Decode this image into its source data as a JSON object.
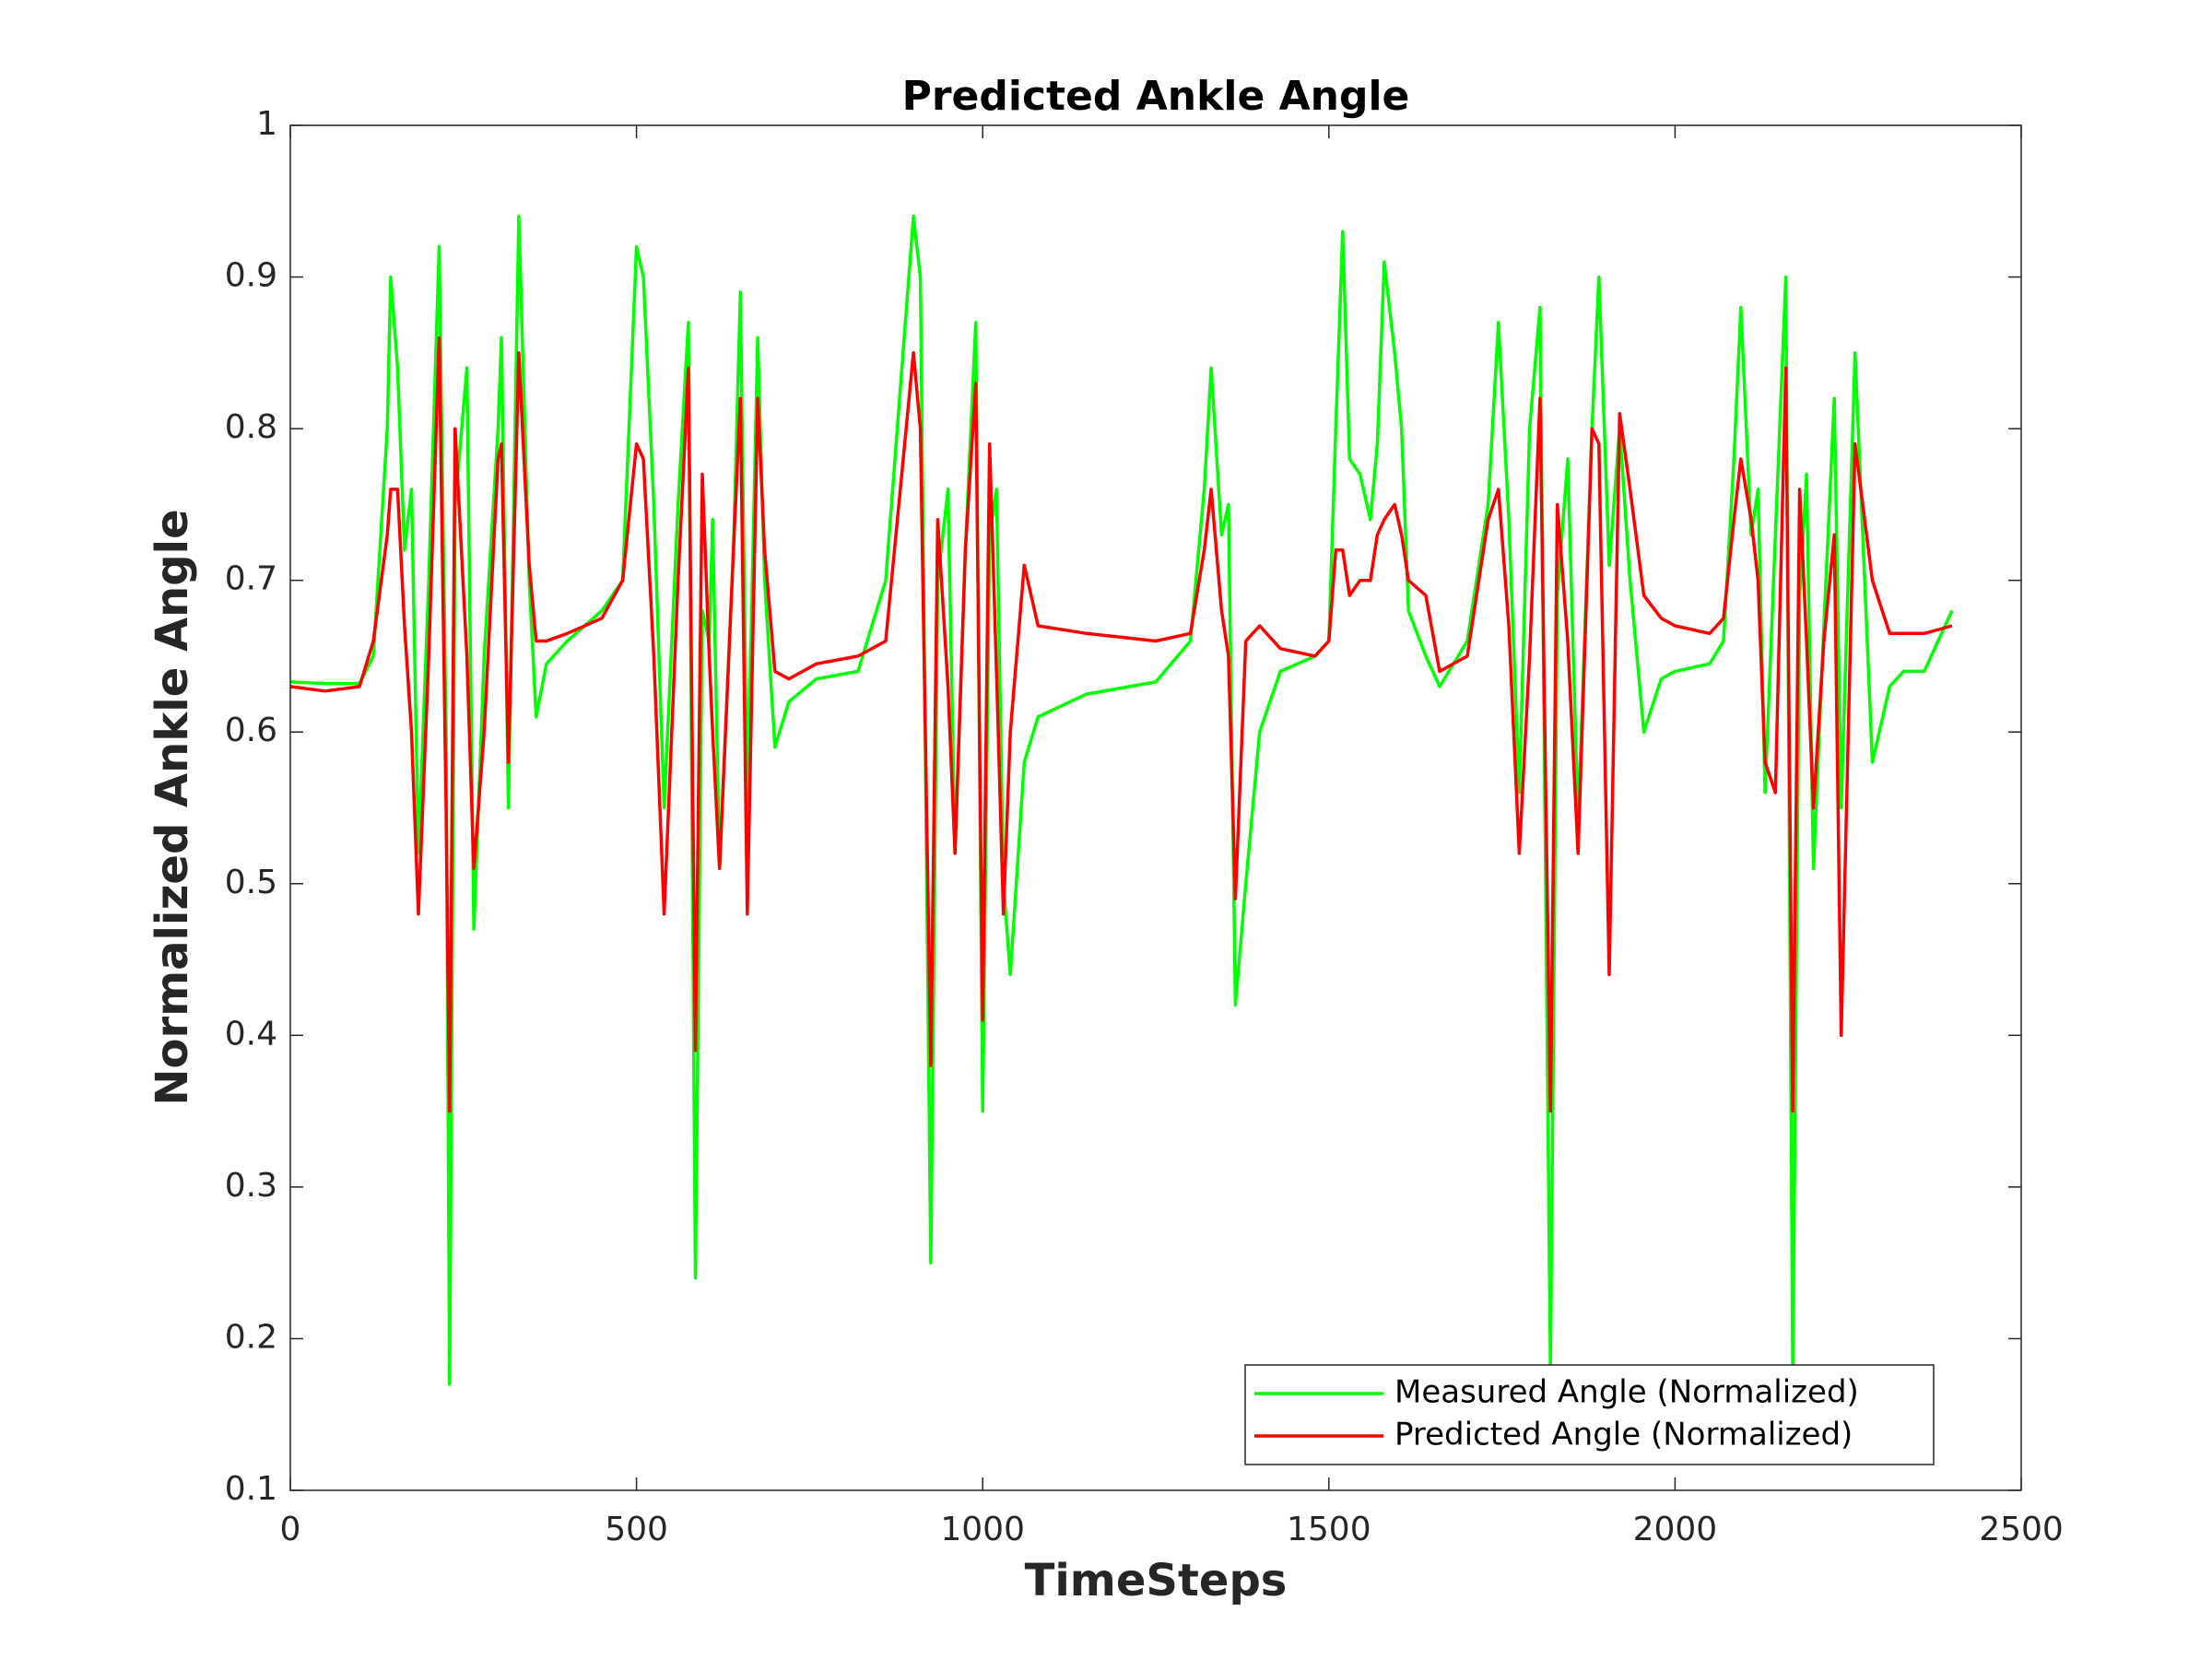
{
  "chart_data": {
    "type": "line",
    "title": "Predicted Ankle Angle",
    "xlabel": "TimeSteps",
    "ylabel": "Normalized Ankle Angle",
    "x": [
      0,
      50,
      100,
      120,
      140,
      145,
      155,
      165,
      175,
      185,
      200,
      215,
      225,
      230,
      238,
      255,
      265,
      280,
      300,
      305,
      315,
      330,
      345,
      355,
      370,
      400,
      450,
      480,
      500,
      510,
      525,
      540,
      560,
      575,
      585,
      595,
      605,
      610,
      620,
      640,
      650,
      660,
      675,
      685,
      700,
      720,
      760,
      820,
      860,
      900,
      910,
      925,
      935,
      950,
      960,
      975,
      990,
      1000,
      1010,
      1020,
      1030,
      1040,
      1060,
      1080,
      1150,
      1250,
      1300,
      1320,
      1330,
      1345,
      1355,
      1365,
      1380,
      1400,
      1430,
      1480,
      1500,
      1510,
      1520,
      1530,
      1545,
      1560,
      1570,
      1580,
      1595,
      1605,
      1615,
      1640,
      1660,
      1700,
      1730,
      1745,
      1760,
      1775,
      1790,
      1805,
      1820,
      1830,
      1845,
      1860,
      1880,
      1890,
      1905,
      1920,
      1935,
      1955,
      1980,
      2000,
      2050,
      2070,
      2085,
      2095,
      2110,
      2120,
      2130,
      2145,
      2160,
      2170,
      2180,
      2190,
      2200,
      2215,
      2230,
      2240,
      2260,
      2285,
      2310,
      2330,
      2360,
      2400
    ],
    "series": [
      {
        "name": "Measured Angle (Normalized)",
        "color": "#00ff00",
        "values": [
          0.633,
          0.632,
          0.632,
          0.65,
          0.8,
          0.9,
          0.84,
          0.72,
          0.76,
          0.52,
          0.7,
          0.92,
          0.6,
          0.17,
          0.75,
          0.84,
          0.47,
          0.65,
          0.8,
          0.86,
          0.55,
          0.94,
          0.7,
          0.61,
          0.645,
          0.66,
          0.68,
          0.7,
          0.92,
          0.9,
          0.75,
          0.55,
          0.75,
          0.87,
          0.24,
          0.68,
          0.66,
          0.74,
          0.51,
          0.72,
          0.89,
          0.55,
          0.86,
          0.7,
          0.59,
          0.62,
          0.635,
          0.64,
          0.7,
          0.94,
          0.9,
          0.25,
          0.7,
          0.76,
          0.52,
          0.72,
          0.87,
          0.35,
          0.73,
          0.76,
          0.5,
          0.44,
          0.58,
          0.61,
          0.625,
          0.633,
          0.66,
          0.76,
          0.84,
          0.73,
          0.75,
          0.42,
          0.5,
          0.6,
          0.64,
          0.65,
          0.66,
          0.8,
          0.93,
          0.78,
          0.77,
          0.74,
          0.79,
          0.91,
          0.85,
          0.8,
          0.68,
          0.65,
          0.63,
          0.66,
          0.75,
          0.87,
          0.74,
          0.56,
          0.8,
          0.88,
          0.18,
          0.69,
          0.78,
          0.54,
          0.8,
          0.9,
          0.71,
          0.8,
          0.7,
          0.6,
          0.635,
          0.64,
          0.645,
          0.66,
          0.78,
          0.88,
          0.73,
          0.76,
          0.56,
          0.73,
          0.9,
          0.18,
          0.69,
          0.77,
          0.51,
          0.67,
          0.82,
          0.55,
          0.85,
          0.58,
          0.63,
          0.64,
          0.64,
          0.68
        ]
      },
      {
        "name": "Predicted Angle (Normalized)",
        "color": "#ff0000",
        "values": [
          0.63,
          0.627,
          0.63,
          0.66,
          0.73,
          0.76,
          0.76,
          0.67,
          0.6,
          0.48,
          0.65,
          0.86,
          0.55,
          0.35,
          0.8,
          0.65,
          0.51,
          0.6,
          0.78,
          0.79,
          0.58,
          0.85,
          0.71,
          0.66,
          0.66,
          0.665,
          0.675,
          0.7,
          0.79,
          0.78,
          0.65,
          0.48,
          0.7,
          0.84,
          0.39,
          0.77,
          0.65,
          0.6,
          0.51,
          0.72,
          0.82,
          0.48,
          0.82,
          0.72,
          0.64,
          0.635,
          0.645,
          0.65,
          0.66,
          0.85,
          0.8,
          0.38,
          0.74,
          0.63,
          0.52,
          0.72,
          0.83,
          0.41,
          0.79,
          0.64,
          0.48,
          0.6,
          0.71,
          0.67,
          0.665,
          0.66,
          0.665,
          0.72,
          0.76,
          0.68,
          0.65,
          0.49,
          0.66,
          0.67,
          0.655,
          0.65,
          0.66,
          0.72,
          0.72,
          0.69,
          0.7,
          0.7,
          0.73,
          0.74,
          0.75,
          0.73,
          0.7,
          0.69,
          0.64,
          0.65,
          0.74,
          0.76,
          0.67,
          0.52,
          0.65,
          0.82,
          0.35,
          0.75,
          0.66,
          0.52,
          0.8,
          0.79,
          0.44,
          0.81,
          0.76,
          0.69,
          0.675,
          0.67,
          0.665,
          0.675,
          0.74,
          0.78,
          0.74,
          0.7,
          0.58,
          0.56,
          0.84,
          0.35,
          0.76,
          0.66,
          0.55,
          0.66,
          0.73,
          0.4,
          0.79,
          0.7,
          0.665,
          0.665,
          0.665,
          0.67
        ]
      }
    ],
    "xlim": [
      0,
      2500
    ],
    "xticks": [
      0,
      500,
      1000,
      1500,
      2000,
      2500
    ],
    "ylim": [
      0.1,
      1
    ],
    "yticks": [
      0.1,
      0.2,
      0.3,
      0.4,
      0.5,
      0.6,
      0.7,
      0.8,
      0.9,
      1
    ],
    "legend": "lower right"
  }
}
